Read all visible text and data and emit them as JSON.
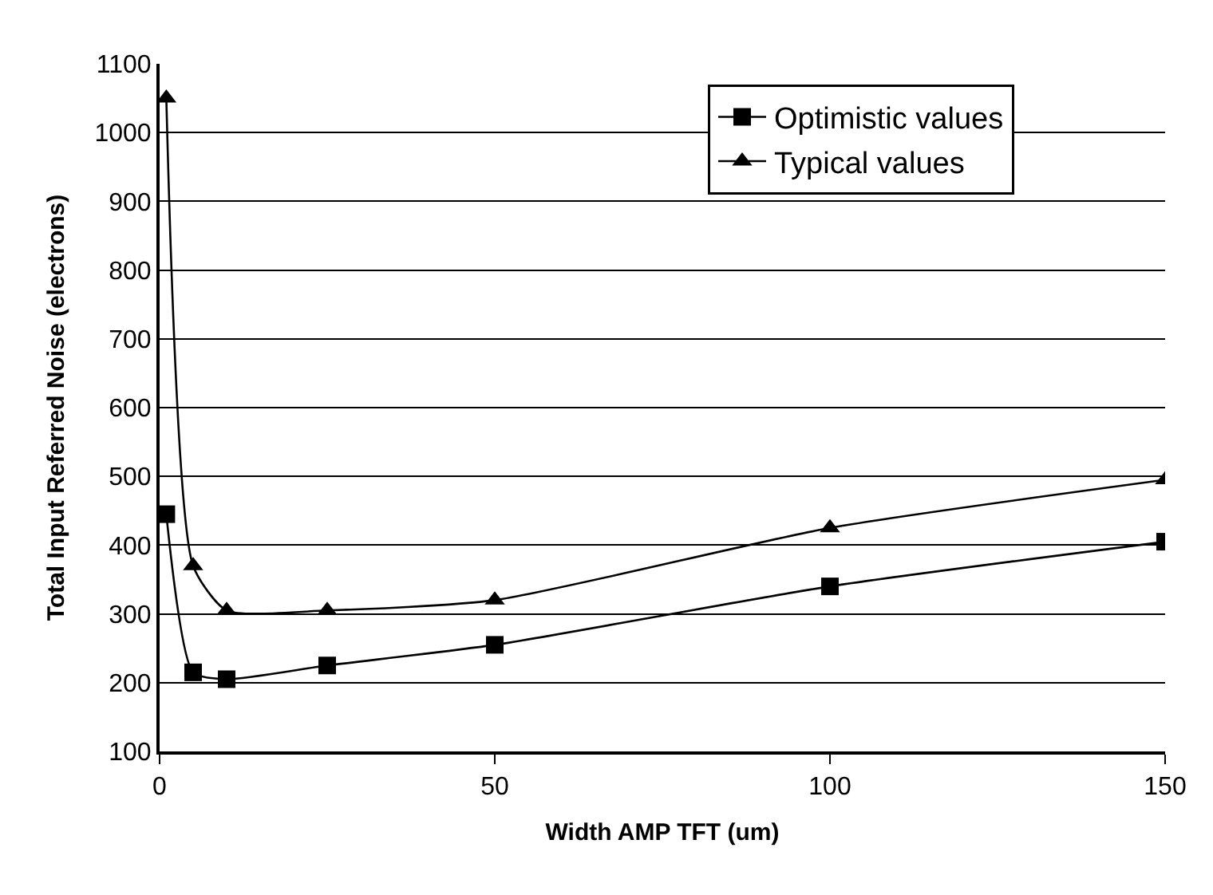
{
  "chart_data": {
    "type": "line",
    "xlabel": "Width AMP TFT (um)",
    "ylabel": "Total Input Referred Noise (electrons)",
    "x": [
      1,
      5,
      10,
      25,
      50,
      100,
      150
    ],
    "series": [
      {
        "name": "Optimistic values",
        "color": "#000000",
        "marker": "square",
        "values": [
          445,
          215,
          205,
          225,
          255,
          340,
          405
        ]
      },
      {
        "name": "Typical values",
        "color": "#000000",
        "marker": "triangle",
        "values": [
          1050,
          370,
          305,
          305,
          320,
          425,
          495
        ]
      }
    ],
    "xlim": [
      0,
      150
    ],
    "xticks": [
      0,
      50,
      100,
      150
    ],
    "ylim": [
      100,
      1100
    ],
    "yticks": [
      100,
      200,
      300,
      400,
      500,
      600,
      700,
      800,
      900,
      1000,
      1100
    ],
    "grid": "y",
    "legend": "top right",
    "line_style": "solid"
  }
}
